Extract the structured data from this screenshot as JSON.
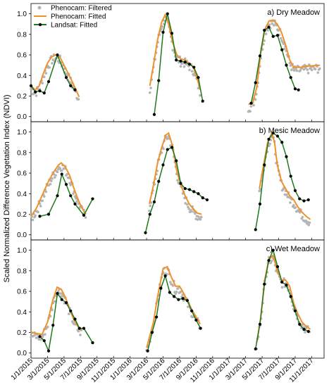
{
  "figure": {
    "ylabel": "Scaled Normalized Difference Vegetation Index (NDVI)"
  },
  "legend": {
    "position": "top-left",
    "items": [
      {
        "label": "Phenocam: Filtered",
        "color": "#b4b4b4",
        "style": "points"
      },
      {
        "label": "Phenocam: Fitted",
        "color": "#f0912b",
        "style": "line"
      },
      {
        "label": "Landsat: Fitted",
        "color": "#1f7a1f",
        "style": "line-markers"
      }
    ]
  },
  "x_ticks": [
    "1/1/2015",
    "3/1/2015",
    "5/1/2015",
    "7/1/2015",
    "9/1/2015",
    "11/1/2015",
    "1/1/2016",
    "3/1/2016",
    "5/1/2016",
    "7/1/2016",
    "9/1/2016",
    "11/1/2016",
    "1/1/2017",
    "3/1/2017",
    "5/1/2017",
    "7/1/2017",
    "9/1/2017",
    "11/1/2017"
  ],
  "y_ticks": [
    "0.0",
    "0.2",
    "0.4",
    "0.6",
    "0.8",
    "1.0"
  ],
  "colors": {
    "filtered": "#b4b4b4",
    "fitted": "#f0912b",
    "landsat": "#1f7a1f",
    "landsat_marker": "#000000"
  },
  "chart_data": [
    {
      "type": "line",
      "title": "a) Dry Meadow",
      "ylim": [
        -0.05,
        1.1
      ],
      "grid": false,
      "series": [
        {
          "name": "Phenocam: Fitted",
          "segments": [
            [
              [
                0,
                0.3
              ],
              [
                15,
                0.26
              ],
              [
                30,
                0.3
              ],
              [
                45,
                0.42
              ],
              [
                60,
                0.52
              ],
              [
                75,
                0.58
              ],
              [
                90,
                0.6
              ],
              [
                105,
                0.58
              ],
              [
                120,
                0.5
              ],
              [
                135,
                0.42
              ],
              [
                150,
                0.34
              ],
              [
                165,
                0.25
              ],
              [
                175,
                0.19
              ]
            ],
            [
              [
                432,
                0.3
              ],
              [
                445,
                0.5
              ],
              [
                460,
                0.75
              ],
              [
                475,
                0.92
              ],
              [
                488,
                0.99
              ],
              [
                500,
                0.9
              ],
              [
                515,
                0.72
              ],
              [
                530,
                0.6
              ],
              [
                545,
                0.56
              ],
              [
                560,
                0.55
              ],
              [
                575,
                0.52
              ],
              [
                590,
                0.48
              ],
              [
                605,
                0.36
              ],
              [
                615,
                0.26
              ]
            ],
            [
              [
                790,
                0.12
              ],
              [
                805,
                0.13
              ],
              [
                820,
                0.28
              ],
              [
                835,
                0.62
              ],
              [
                850,
                0.85
              ],
              [
                865,
                0.93
              ],
              [
                880,
                0.94
              ],
              [
                895,
                0.9
              ],
              [
                910,
                0.82
              ],
              [
                925,
                0.7
              ],
              [
                940,
                0.55
              ],
              [
                955,
                0.48
              ],
              [
                970,
                0.48
              ],
              [
                985,
                0.48
              ],
              [
                1000,
                0.49
              ],
              [
                1050,
                0.5
              ]
            ]
          ]
        },
        {
          "name": "Landsat: Fitted",
          "segments": [
            [
              [
                0,
                0.3
              ],
              [
                16,
                0.24
              ],
              [
                32,
                0.25
              ],
              [
                48,
                0.23
              ],
              [
                64,
                0.34
              ],
              [
                96,
                0.6
              ],
              [
                128,
                0.38
              ],
              [
                144,
                0.3
              ],
              [
                160,
                0.26
              ]
            ],
            [
              [
                448,
                0.02
              ],
              [
                464,
                0.35
              ],
              [
                480,
                0.82
              ],
              [
                496,
                1.0
              ],
              [
                512,
                0.81
              ],
              [
                528,
                0.55
              ],
              [
                544,
                0.54
              ],
              [
                560,
                0.53
              ],
              [
                576,
                0.51
              ],
              [
                592,
                0.48
              ],
              [
                608,
                0.38
              ],
              [
                624,
                0.15
              ]
            ],
            [
              [
                800,
                0.13
              ],
              [
                816,
                0.33
              ],
              [
                832,
                0.59
              ],
              [
                848,
                0.84
              ],
              [
                864,
                0.87
              ],
              [
                880,
                0.78
              ],
              [
                896,
                0.79
              ],
              [
                912,
                0.65
              ],
              [
                928,
                0.5
              ],
              [
                944,
                0.38
              ],
              [
                960,
                0.27
              ],
              [
                972,
                0.26
              ]
            ]
          ]
        }
      ]
    },
    {
      "type": "line",
      "title": "b) Mesic Meadow",
      "ylim": [
        -0.05,
        1.1
      ],
      "grid": false,
      "series": [
        {
          "name": "Phenocam: Fitted",
          "segments": [
            [
              [
                0,
                0.18
              ],
              [
                20,
                0.26
              ],
              [
                40,
                0.38
              ],
              [
                60,
                0.5
              ],
              [
                80,
                0.6
              ],
              [
                100,
                0.68
              ],
              [
                110,
                0.7
              ],
              [
                125,
                0.66
              ],
              [
                140,
                0.58
              ],
              [
                155,
                0.46
              ],
              [
                170,
                0.35
              ],
              [
                185,
                0.26
              ],
              [
                200,
                0.2
              ]
            ],
            [
              [
                430,
                0.3
              ],
              [
                445,
                0.48
              ],
              [
                460,
                0.7
              ],
              [
                475,
                0.85
              ],
              [
                490,
                0.97
              ],
              [
                500,
                0.99
              ],
              [
                515,
                0.86
              ],
              [
                530,
                0.62
              ],
              [
                545,
                0.48
              ],
              [
                560,
                0.38
              ],
              [
                575,
                0.3
              ],
              [
                590,
                0.25
              ],
              [
                605,
                0.21
              ],
              [
                620,
                0.2
              ]
            ],
            [
              [
                830,
                0.45
              ],
              [
                845,
                0.68
              ],
              [
                860,
                0.9
              ],
              [
                875,
                0.99
              ],
              [
                885,
                0.9
              ],
              [
                895,
                0.68
              ],
              [
                910,
                0.52
              ],
              [
                925,
                0.45
              ],
              [
                940,
                0.38
              ],
              [
                955,
                0.34
              ],
              [
                970,
                0.27
              ],
              [
                985,
                0.22
              ],
              [
                1000,
                0.18
              ],
              [
                1015,
                0.15
              ]
            ]
          ]
        },
        {
          "name": "Landsat: Fitted",
          "segments": [
            [
              [
                32,
                0.18
              ],
              [
                64,
                0.2
              ],
              [
                96,
                0.38
              ],
              [
                112,
                0.59
              ],
              [
                128,
                0.49
              ],
              [
                144,
                0.38
              ],
              [
                160,
                0.3
              ],
              [
                192,
                0.19
              ],
              [
                224,
                0.35
              ]
            ],
            [
              [
                416,
                0.02
              ],
              [
                432,
                0.2
              ],
              [
                448,
                0.32
              ],
              [
                464,
                0.52
              ],
              [
                480,
                0.68
              ],
              [
                496,
                0.83
              ],
              [
                512,
                0.85
              ],
              [
                528,
                0.72
              ],
              [
                544,
                0.5
              ],
              [
                560,
                0.45
              ],
              [
                576,
                0.44
              ],
              [
                592,
                0.42
              ],
              [
                608,
                0.4
              ],
              [
                624,
                0.36
              ],
              [
                640,
                0.34
              ]
            ],
            [
              [
                816,
                0.05
              ],
              [
                832,
                0.3
              ],
              [
                848,
                0.68
              ],
              [
                864,
                0.93
              ],
              [
                880,
                0.99
              ],
              [
                896,
                0.96
              ],
              [
                912,
                0.9
              ],
              [
                928,
                0.76
              ],
              [
                944,
                0.57
              ],
              [
                960,
                0.43
              ],
              [
                976,
                0.35
              ],
              [
                992,
                0.33
              ],
              [
                1008,
                0.34
              ]
            ]
          ]
        }
      ]
    },
    {
      "type": "line",
      "title": "c) Wet Meadow",
      "ylim": [
        -0.05,
        1.1
      ],
      "grid": false,
      "series": [
        {
          "name": "Phenocam: Fitted",
          "segments": [
            [
              [
                0,
                0.2
              ],
              [
                20,
                0.19
              ],
              [
                40,
                0.18
              ],
              [
                60,
                0.3
              ],
              [
                80,
                0.52
              ],
              [
                95,
                0.64
              ],
              [
                110,
                0.62
              ],
              [
                125,
                0.54
              ],
              [
                140,
                0.43
              ],
              [
                155,
                0.33
              ],
              [
                170,
                0.26
              ],
              [
                185,
                0.22
              ]
            ],
            [
              [
                420,
                0.05
              ],
              [
                430,
                0.15
              ],
              [
                445,
                0.3
              ],
              [
                460,
                0.55
              ],
              [
                480,
                0.82
              ],
              [
                495,
                0.84
              ],
              [
                510,
                0.74
              ],
              [
                525,
                0.65
              ],
              [
                540,
                0.65
              ],
              [
                555,
                0.58
              ],
              [
                570,
                0.5
              ],
              [
                585,
                0.42
              ],
              [
                600,
                0.35
              ],
              [
                615,
                0.28
              ]
            ],
            [
              [
                820,
                0.1
              ],
              [
                835,
                0.35
              ],
              [
                850,
                0.72
              ],
              [
                865,
                0.92
              ],
              [
                880,
                0.95
              ],
              [
                895,
                0.8
              ],
              [
                910,
                0.71
              ],
              [
                925,
                0.71
              ],
              [
                940,
                0.65
              ],
              [
                955,
                0.48
              ],
              [
                970,
                0.38
              ],
              [
                985,
                0.3
              ],
              [
                1000,
                0.26
              ],
              [
                1015,
                0.23
              ]
            ]
          ]
        },
        {
          "name": "Landsat: Fitted",
          "segments": [
            [
              [
                32,
                0.16
              ],
              [
                48,
                0.12
              ],
              [
                64,
                0.02
              ],
              [
                80,
                0.27
              ],
              [
                96,
                0.58
              ],
              [
                112,
                0.52
              ],
              [
                128,
                0.49
              ],
              [
                144,
                0.41
              ],
              [
                160,
                0.33
              ],
              [
                176,
                0.24
              ],
              [
                192,
                0.24
              ],
              [
                224,
                0.1
              ]
            ],
            [
              [
                424,
                0.02
              ],
              [
                440,
                0.2
              ],
              [
                456,
                0.35
              ],
              [
                472,
                0.63
              ],
              [
                488,
                0.75
              ],
              [
                504,
                0.59
              ],
              [
                520,
                0.55
              ],
              [
                536,
                0.52
              ],
              [
                552,
                0.53
              ],
              [
                568,
                0.51
              ],
              [
                584,
                0.41
              ],
              [
                600,
                0.32
              ],
              [
                616,
                0.24
              ]
            ],
            [
              [
                816,
                0.04
              ],
              [
                832,
                0.28
              ],
              [
                848,
                0.67
              ],
              [
                864,
                0.9
              ],
              [
                880,
                1.0
              ],
              [
                896,
                0.84
              ],
              [
                912,
                0.69
              ],
              [
                928,
                0.66
              ],
              [
                944,
                0.55
              ],
              [
                960,
                0.41
              ],
              [
                976,
                0.28
              ],
              [
                992,
                0.23
              ],
              [
                1008,
                0.21
              ]
            ]
          ]
        }
      ]
    }
  ]
}
